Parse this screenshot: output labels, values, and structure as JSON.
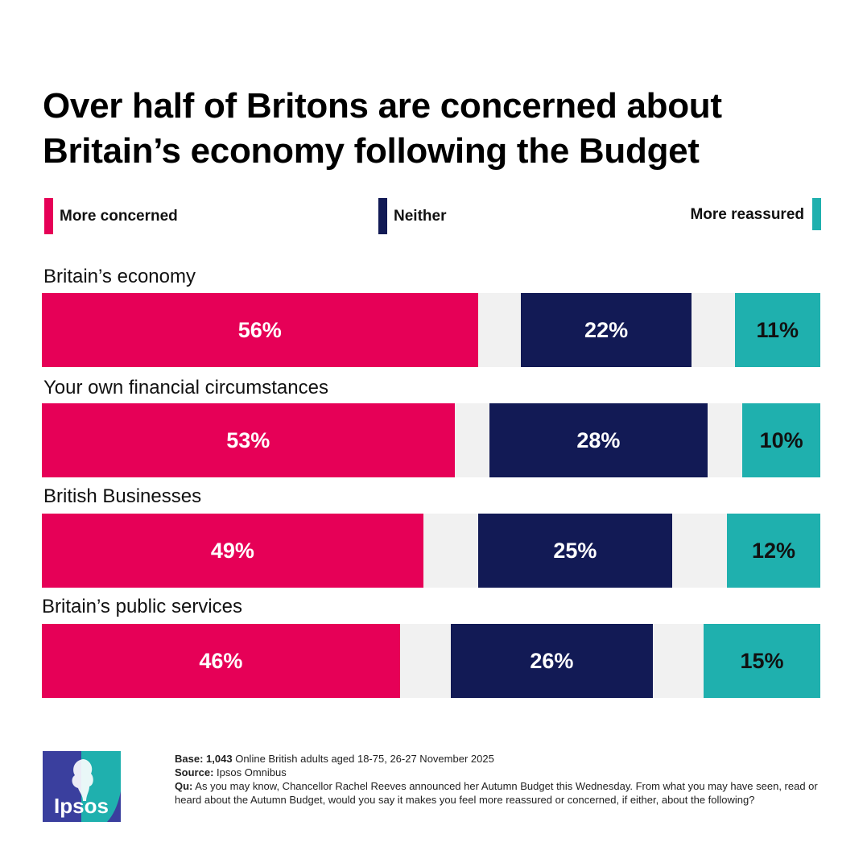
{
  "colors": {
    "concerned": "#e60057",
    "neither": "#121a55",
    "reassured": "#1fb0ae",
    "track": "#f1f1f1",
    "logo_blue": "#3a3f9e",
    "logo_teal": "#1fb0ae"
  },
  "chart_data": {
    "type": "bar",
    "orientation": "horizontal-stacked-diverging",
    "title_lines": [
      "Over half of Britons are concerned about",
      "Britain’s economy following the Budget"
    ],
    "title": "Over half of Britons are concerned about Britain’s economy following the Budget",
    "legend": [
      "More concerned",
      "Neither",
      "More reassured"
    ],
    "legend_position": "top",
    "categories": [
      "Britain’s economy",
      "Your own financial circumstances",
      "British Businesses",
      "Britain’s public services"
    ],
    "series": [
      {
        "name": "More concerned",
        "values": [
          56,
          53,
          49,
          46
        ],
        "labels": [
          "56%",
          "53%",
          "49%",
          "46%"
        ]
      },
      {
        "name": "Neither",
        "values": [
          22,
          28,
          25,
          26
        ],
        "labels": [
          "22%",
          "28%",
          "25%",
          "26%"
        ]
      },
      {
        "name": "More reassured",
        "values": [
          11,
          10,
          12,
          15
        ],
        "labels": [
          "11%",
          "10%",
          "12%",
          "15%"
        ]
      }
    ],
    "unit": "%",
    "xlim": [
      0,
      100
    ]
  },
  "footer": {
    "base_label": "Base:",
    "base_bold": "1,043",
    "base_text": "Online British adults aged 18-75, 26-27 November 2025",
    "source_label": "Source:",
    "source_text": "Ipsos Omnibus",
    "question_label": "Qu:",
    "question_text": "As you may know, Chancellor Rachel Reeves announced her Autumn Budget this Wednesday. From what you may have seen, read or heard about the Autumn Budget, would you say it makes you feel more reassured or concerned, if either, about the following?"
  },
  "logo": {
    "text": "Ipsos"
  }
}
